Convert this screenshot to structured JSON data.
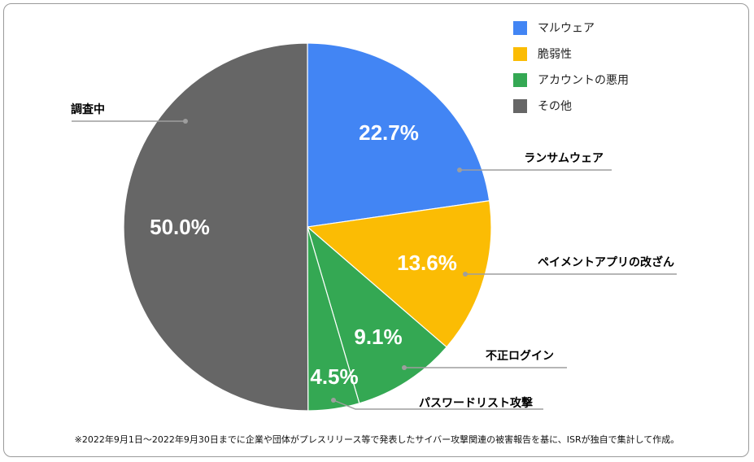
{
  "chart_data": {
    "type": "pie",
    "legend": [
      {
        "label": "マルウェア",
        "color": "#4285F4"
      },
      {
        "label": "脆弱性",
        "color": "#FBBC04"
      },
      {
        "label": "アカウントの悪用",
        "color": "#34A853"
      },
      {
        "label": "その他",
        "color": "#666666"
      }
    ],
    "slices": [
      {
        "label": "ランサムウェア",
        "value": 22.7,
        "display": "22.7%",
        "color": "#4285F4"
      },
      {
        "label": "ペイメントアプリの改ざん",
        "value": 13.6,
        "display": "13.6%",
        "color": "#FBBC04"
      },
      {
        "label": "不正ログイン",
        "value": 9.1,
        "display": "9.1%",
        "color": "#34A853"
      },
      {
        "label": "パスワードリスト攻撃",
        "value": 4.5,
        "display": "4.5%",
        "color": "#34A853"
      },
      {
        "label": "調査中",
        "value": 50.0,
        "display": "50.0%",
        "color": "#666666"
      }
    ],
    "legend_position": "top-right"
  },
  "footnote": "※2022年9月1日～2022年9月30日までに企業や団体がプレスリリース等で発表したサイバー攻撃関連の被害報告を基に、ISRが独自で集計して作成。"
}
